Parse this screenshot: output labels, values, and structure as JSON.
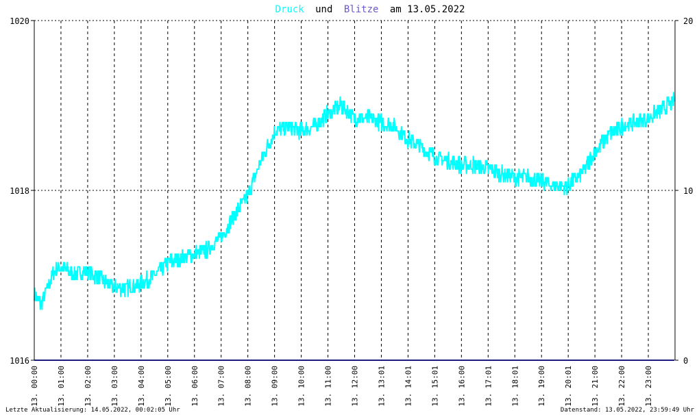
{
  "chart_data": {
    "type": "line",
    "title_parts": {
      "druck": "Druck",
      "und": "und",
      "blitze": "Blitze",
      "date_text": "am 13.05.2022"
    },
    "colors": {
      "druck": "#00ffff",
      "blitze": "#6a5acd",
      "text": "#000000",
      "grid": "#000000",
      "baseline": "#1a1a80"
    },
    "left_axis": {
      "range": [
        1016,
        1020
      ],
      "ticks": [
        "1016",
        "1018",
        "1020"
      ]
    },
    "right_axis": {
      "range": [
        0,
        20
      ],
      "ticks": [
        "0",
        "10",
        "20"
      ]
    },
    "x_tick_labels": [
      "13. 00:00",
      "13. 01:00",
      "13. 02:00",
      "13. 03:00",
      "13. 04:00",
      "13. 05:00",
      "13. 06:00",
      "13. 07:00",
      "13. 08:00",
      "13. 09:00",
      "13. 10:00",
      "13. 11:00",
      "13. 12:00",
      "13. 13:01",
      "13. 14:01",
      "13. 15:01",
      "13. 16:00",
      "13. 17:01",
      "13. 18:01",
      "13. 19:00",
      "13. 20:01",
      "13. 21:00",
      "13. 22:00",
      "13. 23:00"
    ],
    "series": [
      {
        "key": "druck",
        "hours": [
          0,
          0.25,
          0.5,
          0.75,
          1.0,
          1.5,
          2.0,
          2.5,
          3.0,
          3.5,
          4.0,
          4.5,
          5.0,
          5.5,
          6.0,
          6.5,
          7.0,
          7.5,
          8.0,
          8.5,
          9.0,
          9.5,
          10.0,
          10.5,
          11.0,
          11.5,
          12.0,
          12.5,
          13.0,
          13.5,
          14.0,
          14.5,
          15.0,
          15.5,
          16.0,
          16.5,
          17.0,
          17.5,
          18.0,
          18.5,
          19.0,
          19.5,
          20.0,
          20.5,
          21.0,
          21.5,
          22.0,
          22.5,
          23.0,
          23.5,
          23.98
        ],
        "values": [
          1016.8,
          1016.65,
          1016.85,
          1017.05,
          1017.1,
          1017.0,
          1017.05,
          1016.95,
          1016.85,
          1016.85,
          1016.9,
          1017.0,
          1017.15,
          1017.2,
          1017.25,
          1017.3,
          1017.45,
          1017.7,
          1017.95,
          1018.35,
          1018.7,
          1018.75,
          1018.7,
          1018.75,
          1018.9,
          1019.0,
          1018.85,
          1018.85,
          1018.8,
          1018.75,
          1018.6,
          1018.5,
          1018.4,
          1018.35,
          1018.3,
          1018.3,
          1018.25,
          1018.2,
          1018.15,
          1018.15,
          1018.1,
          1018.05,
          1018.05,
          1018.2,
          1018.45,
          1018.65,
          1018.75,
          1018.8,
          1018.85,
          1018.95,
          1019.05
        ],
        "noise": 0.09
      },
      {
        "key": "blitze",
        "hours": [
          0,
          23.98
        ],
        "values": [
          0,
          0
        ]
      }
    ],
    "grid": true,
    "footer": {
      "left": "Letzte Aktualisierung: 14.05.2022, 00:02:05 Uhr",
      "right": "Datenstand: 13.05.2022, 23:59:49 Uhr"
    }
  }
}
